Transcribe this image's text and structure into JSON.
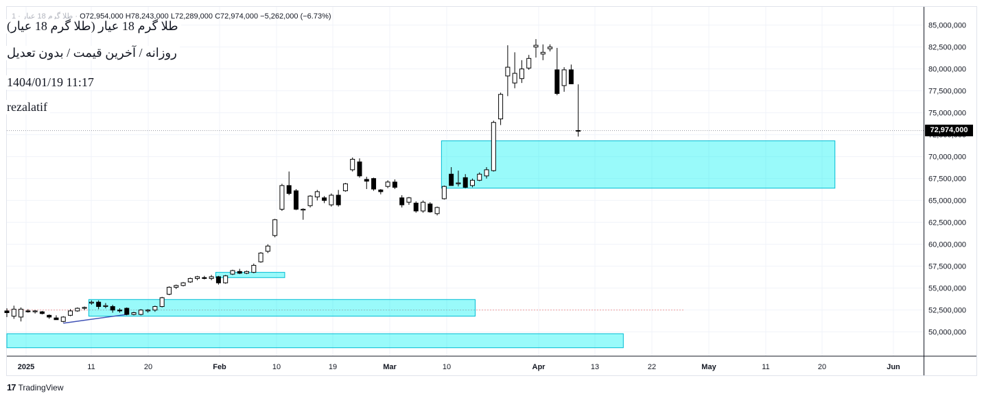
{
  "header": {
    "symbol_prefix": "طلا گرم 18 عيار · 1 · ",
    "open": "O72,954,000",
    "high": "H78,243,000",
    "low": "L72,289,000",
    "close": "C72,974,000",
    "change": "−5,262,000 (−6.73%)"
  },
  "overlay": {
    "title": "(طلا گرم 18 عیار (طلا گرم 18 عیار",
    "subtitle": "روزانه / آخرین قیمت / بدون تعدیل",
    "datetime": "1404/01/19 11:17",
    "author": "rezalatif"
  },
  "footer": {
    "brand": "TradingView",
    "logo_glyph": "17"
  },
  "colors": {
    "up_body": "#ffffff",
    "down_body": "#000000",
    "wick": "#000000",
    "zone_fill": "#00f2f2",
    "zone_stroke": "#00bcd4",
    "trend": "#3f51b5",
    "grid": "#f0f3fa",
    "axis_text": "#131722"
  },
  "chart_data": {
    "type": "candlestick",
    "interval": "daily",
    "last_price_label": "72,974,000",
    "y_axis": {
      "ylim": [
        47800000,
        87200000
      ],
      "ticks": [
        50000000,
        52500000,
        55000000,
        57500000,
        60000000,
        62500000,
        65000000,
        67500000,
        70000000,
        72500000,
        75000000,
        77500000,
        80000000,
        82500000,
        85000000
      ],
      "tick_labels": [
        "50,000,000",
        "52,500,000",
        "55,000,000",
        "57,500,000",
        "60,000,000",
        "62,500,000",
        "65,000,000",
        "67,500,000",
        "70,000,000",
        "72,500,000",
        "75,000,000",
        "77,500,000",
        "80,000,000",
        "82,500,000",
        "85,000,000"
      ]
    },
    "x_axis": {
      "tick_labels": [
        "2025",
        "11",
        "20",
        "Feb",
        "10",
        "19",
        "Mar",
        "10",
        "Apr",
        "13",
        "22",
        "May",
        "11",
        "20",
        "Jun"
      ],
      "bold_labels": [
        "2025",
        "Feb",
        "Mar",
        "Apr",
        "May",
        "Jun"
      ]
    },
    "candles": [
      {
        "o": 52400000,
        "h": 52700000,
        "l": 51700000,
        "c": 52200000
      },
      {
        "o": 51800000,
        "h": 53000000,
        "l": 51500000,
        "c": 52600000
      },
      {
        "o": 51700000,
        "h": 52800000,
        "l": 51200000,
        "c": 52600000
      },
      {
        "o": 52400000,
        "h": 52600000,
        "l": 52200000,
        "c": 52300000
      },
      {
        "o": 52300000,
        "h": 52500000,
        "l": 52100000,
        "c": 52400000
      },
      {
        "o": 52300000,
        "h": 52400000,
        "l": 52000000,
        "c": 52100000
      },
      {
        "o": 51900000,
        "h": 52000000,
        "l": 51500000,
        "c": 51700000
      },
      {
        "o": 51600000,
        "h": 51900000,
        "l": 51400000,
        "c": 51400000
      },
      {
        "o": 51200000,
        "h": 51800000,
        "l": 51100000,
        "c": 51700000
      },
      {
        "o": 51900000,
        "h": 52600000,
        "l": 51800000,
        "c": 52400000
      },
      {
        "o": 52400000,
        "h": 52800000,
        "l": 52300000,
        "c": 52700000
      },
      {
        "o": 52700000,
        "h": 52900000,
        "l": 52500000,
        "c": 52800000
      },
      {
        "o": 53300000,
        "h": 53600000,
        "l": 53100000,
        "c": 53400000
      },
      {
        "o": 53400000,
        "h": 53600000,
        "l": 52600000,
        "c": 52900000
      },
      {
        "o": 52900000,
        "h": 53300000,
        "l": 52700000,
        "c": 53000000
      },
      {
        "o": 52900000,
        "h": 53100000,
        "l": 52200000,
        "c": 52500000
      },
      {
        "o": 52500000,
        "h": 52700000,
        "l": 52200000,
        "c": 52400000
      },
      {
        "o": 52700000,
        "h": 52800000,
        "l": 51900000,
        "c": 52000000
      },
      {
        "o": 52000000,
        "h": 52300000,
        "l": 51900000,
        "c": 52200000
      },
      {
        "o": 52000000,
        "h": 52600000,
        "l": 51900000,
        "c": 52500000
      },
      {
        "o": 52400000,
        "h": 52600000,
        "l": 52200000,
        "c": 52500000
      },
      {
        "o": 52500000,
        "h": 53000000,
        "l": 52300000,
        "c": 52900000
      },
      {
        "o": 52900000,
        "h": 54000000,
        "l": 52800000,
        "c": 53900000
      },
      {
        "o": 54300000,
        "h": 55200000,
        "l": 54200000,
        "c": 55100000
      },
      {
        "o": 55100000,
        "h": 55400000,
        "l": 54900000,
        "c": 55300000
      },
      {
        "o": 55300000,
        "h": 55700000,
        "l": 55200000,
        "c": 55600000
      },
      {
        "o": 55700000,
        "h": 56200000,
        "l": 55600000,
        "c": 56100000
      },
      {
        "o": 56100000,
        "h": 56400000,
        "l": 55900000,
        "c": 56300000
      },
      {
        "o": 56200000,
        "h": 56400000,
        "l": 56000000,
        "c": 56100000
      },
      {
        "o": 56100000,
        "h": 56500000,
        "l": 55900000,
        "c": 56300000
      },
      {
        "o": 56300000,
        "h": 56400000,
        "l": 55400000,
        "c": 55600000
      },
      {
        "o": 55600000,
        "h": 56500000,
        "l": 55500000,
        "c": 56400000
      },
      {
        "o": 56600000,
        "h": 57100000,
        "l": 56500000,
        "c": 57000000
      },
      {
        "o": 56900000,
        "h": 57200000,
        "l": 56600000,
        "c": 56700000
      },
      {
        "o": 56700000,
        "h": 57000000,
        "l": 56600000,
        "c": 56900000
      },
      {
        "o": 56800000,
        "h": 57800000,
        "l": 56700000,
        "c": 57600000
      },
      {
        "o": 58000000,
        "h": 59100000,
        "l": 57900000,
        "c": 59000000
      },
      {
        "o": 59200000,
        "h": 60000000,
        "l": 59000000,
        "c": 59800000
      },
      {
        "o": 61000000,
        "h": 62900000,
        "l": 60800000,
        "c": 62800000
      },
      {
        "o": 64000000,
        "h": 66900000,
        "l": 63800000,
        "c": 66700000
      },
      {
        "o": 66700000,
        "h": 68300000,
        "l": 65600000,
        "c": 65800000
      },
      {
        "o": 66100000,
        "h": 66300000,
        "l": 63900000,
        "c": 64000000
      },
      {
        "o": 63900000,
        "h": 64100000,
        "l": 62800000,
        "c": 64000000
      },
      {
        "o": 64400000,
        "h": 65600000,
        "l": 64200000,
        "c": 65500000
      },
      {
        "o": 65400000,
        "h": 66200000,
        "l": 65000000,
        "c": 66000000
      },
      {
        "o": 65300000,
        "h": 65500000,
        "l": 64700000,
        "c": 65000000
      },
      {
        "o": 64500000,
        "h": 65800000,
        "l": 64300000,
        "c": 65600000
      },
      {
        "o": 65600000,
        "h": 66200000,
        "l": 64300000,
        "c": 64500000
      },
      {
        "o": 66100000,
        "h": 67000000,
        "l": 66000000,
        "c": 66900000
      },
      {
        "o": 68500000,
        "h": 69900000,
        "l": 68300000,
        "c": 69700000
      },
      {
        "o": 69400000,
        "h": 69800000,
        "l": 67600000,
        "c": 67800000
      },
      {
        "o": 67400000,
        "h": 67700000,
        "l": 66300000,
        "c": 67200000
      },
      {
        "o": 67500000,
        "h": 67600000,
        "l": 66100000,
        "c": 66300000
      },
      {
        "o": 66200000,
        "h": 66300000,
        "l": 65700000,
        "c": 66000000
      },
      {
        "o": 66600000,
        "h": 67300000,
        "l": 66400000,
        "c": 67100000
      },
      {
        "o": 67100000,
        "h": 67400000,
        "l": 66300000,
        "c": 66500000
      },
      {
        "o": 65300000,
        "h": 65600000,
        "l": 64200000,
        "c": 64500000
      },
      {
        "o": 64800000,
        "h": 65400000,
        "l": 64500000,
        "c": 65300000
      },
      {
        "o": 64700000,
        "h": 64900000,
        "l": 63600000,
        "c": 63800000
      },
      {
        "o": 63800000,
        "h": 65000000,
        "l": 63600000,
        "c": 64800000
      },
      {
        "o": 64600000,
        "h": 64800000,
        "l": 63600000,
        "c": 63700000
      },
      {
        "o": 63500000,
        "h": 64300000,
        "l": 63300000,
        "c": 64200000
      },
      {
        "o": 65200000,
        "h": 66700000,
        "l": 65100000,
        "c": 66600000
      },
      {
        "o": 68000000,
        "h": 68800000,
        "l": 66900000,
        "c": 66700000
      },
      {
        "o": 66900000,
        "h": 68400000,
        "l": 66600000,
        "c": 67000000
      },
      {
        "o": 67600000,
        "h": 68000000,
        "l": 66400000,
        "c": 66500000
      },
      {
        "o": 66700000,
        "h": 67500000,
        "l": 66500000,
        "c": 67300000
      },
      {
        "o": 67300000,
        "h": 68200000,
        "l": 67200000,
        "c": 68000000
      },
      {
        "o": 67800000,
        "h": 68800000,
        "l": 67500000,
        "c": 68500000
      },
      {
        "o": 68400000,
        "h": 74100000,
        "l": 68300000,
        "c": 73900000
      },
      {
        "o": 74300000,
        "h": 77300000,
        "l": 73600000,
        "c": 77100000
      },
      {
        "o": 79200000,
        "h": 82700000,
        "l": 76900000,
        "c": 80200000
      },
      {
        "o": 78400000,
        "h": 81900000,
        "l": 77800000,
        "c": 79500000
      },
      {
        "o": 78900000,
        "h": 81000000,
        "l": 78400000,
        "c": 80000000
      },
      {
        "o": 80100000,
        "h": 81600000,
        "l": 79900000,
        "c": 81200000
      },
      {
        "o": 82500000,
        "h": 83400000,
        "l": 81300000,
        "c": 82700000
      },
      {
        "o": 81700000,
        "h": 82800000,
        "l": 81000000,
        "c": 81900000
      },
      {
        "o": 82300000,
        "h": 82800000,
        "l": 82000000,
        "c": 82500000
      },
      {
        "o": 79900000,
        "h": 82400000,
        "l": 77000000,
        "c": 77200000
      },
      {
        "o": 78100000,
        "h": 80200000,
        "l": 77400000,
        "c": 79900000
      },
      {
        "o": 79900000,
        "h": 80500000,
        "l": 78400000,
        "c": 78300000
      },
      {
        "o": 72954000,
        "h": 78243000,
        "l": 72289000,
        "c": 72974000
      }
    ],
    "zones": [
      {
        "from_bar": 62,
        "to_bar": 117,
        "top": 71800000,
        "bottom": 66400000
      },
      {
        "from_bar": 12,
        "to_bar": 66,
        "top": 53700000,
        "bottom": 51800000
      },
      {
        "from_bar": 30,
        "to_bar": 39,
        "top": 56800000,
        "bottom": 56200000
      },
      {
        "from_bar": -1,
        "to_bar": 87,
        "top": 49800000,
        "bottom": 48200000
      }
    ],
    "trendline": {
      "from_bar": 8,
      "to_bar": 17,
      "from": 51000000,
      "to": 52000000
    },
    "reference_line": {
      "from_bar": 0,
      "to_bar": 96,
      "value": 52500000
    }
  }
}
